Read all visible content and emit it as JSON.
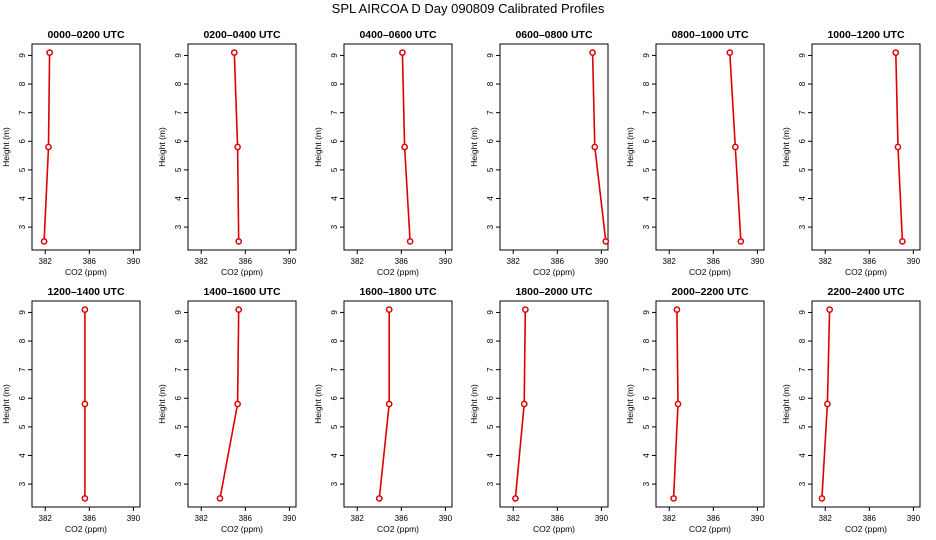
{
  "title": "SPL AIRCOA D  Day 090809  Calibrated Profiles",
  "colors": {
    "line": "#dd0000",
    "marker": "#dd0000",
    "axis": "#000000"
  },
  "chart_data": [
    {
      "type": "line",
      "title": "0000–0200 UTC",
      "xlabel": "CO2 (ppm)",
      "ylabel": "Height (m)",
      "xlim": [
        380.8,
        390.6
      ],
      "ylim": [
        2.2,
        9.4
      ],
      "xticks": [
        382,
        386,
        390
      ],
      "xtick_labels": [
        "382",
        "386",
        "390"
      ],
      "yticks": [
        3,
        4,
        5,
        6,
        7,
        8,
        9
      ],
      "ytick_labels": [
        "3",
        "4",
        "5",
        "6",
        "7",
        "8",
        "9"
      ],
      "x": [
        381.9,
        382.3,
        382.4
      ],
      "y": [
        2.5,
        5.8,
        9.1
      ]
    },
    {
      "type": "line",
      "title": "0200–0400 UTC",
      "xlabel": "CO2 (ppm)",
      "ylabel": "Height (m)",
      "xlim": [
        380.8,
        390.6
      ],
      "ylim": [
        2.2,
        9.4
      ],
      "xticks": [
        382,
        386,
        390
      ],
      "xtick_labels": [
        "382",
        "386",
        "390"
      ],
      "yticks": [
        3,
        4,
        5,
        6,
        7,
        8,
        9
      ],
      "ytick_labels": [
        "3",
        "4",
        "5",
        "6",
        "7",
        "8",
        "9"
      ],
      "x": [
        385.4,
        385.3,
        385.0
      ],
      "y": [
        2.5,
        5.8,
        9.1
      ]
    },
    {
      "type": "line",
      "title": "0400–0600 UTC",
      "xlabel": "CO2 (ppm)",
      "ylabel": "Height (m)",
      "xlim": [
        380.8,
        390.6
      ],
      "ylim": [
        2.2,
        9.4
      ],
      "xticks": [
        382,
        386,
        390
      ],
      "xtick_labels": [
        "382",
        "386",
        "390"
      ],
      "yticks": [
        3,
        4,
        5,
        6,
        7,
        8,
        9
      ],
      "ytick_labels": [
        "3",
        "4",
        "5",
        "6",
        "7",
        "8",
        "9"
      ],
      "x": [
        386.8,
        386.3,
        386.1
      ],
      "y": [
        2.5,
        5.8,
        9.1
      ]
    },
    {
      "type": "line",
      "title": "0600–0800 UTC",
      "xlabel": "CO2 (ppm)",
      "ylabel": "Height (m)",
      "xlim": [
        380.8,
        390.6
      ],
      "ylim": [
        2.2,
        9.4
      ],
      "xticks": [
        382,
        386,
        390
      ],
      "xtick_labels": [
        "382",
        "386",
        "390"
      ],
      "yticks": [
        3,
        4,
        5,
        6,
        7,
        8,
        9
      ],
      "ytick_labels": [
        "3",
        "4",
        "5",
        "6",
        "7",
        "8",
        "9"
      ],
      "x": [
        390.4,
        389.4,
        389.2
      ],
      "y": [
        2.5,
        5.8,
        9.1
      ]
    },
    {
      "type": "line",
      "title": "0800–1000 UTC",
      "xlabel": "CO2 (ppm)",
      "ylabel": "Height (m)",
      "xlim": [
        380.8,
        390.6
      ],
      "ylim": [
        2.2,
        9.4
      ],
      "xticks": [
        382,
        386,
        390
      ],
      "xtick_labels": [
        "382",
        "386",
        "390"
      ],
      "yticks": [
        3,
        4,
        5,
        6,
        7,
        8,
        9
      ],
      "ytick_labels": [
        "3",
        "4",
        "5",
        "6",
        "7",
        "8",
        "9"
      ],
      "x": [
        388.5,
        388.0,
        387.5
      ],
      "y": [
        2.5,
        5.8,
        9.1
      ]
    },
    {
      "type": "line",
      "title": "1000–1200 UTC",
      "xlabel": "CO2 (ppm)",
      "ylabel": "Height (m)",
      "xlim": [
        380.8,
        390.6
      ],
      "ylim": [
        2.2,
        9.4
      ],
      "xticks": [
        382,
        386,
        390
      ],
      "xtick_labels": [
        "382",
        "386",
        "390"
      ],
      "yticks": [
        3,
        4,
        5,
        6,
        7,
        8,
        9
      ],
      "ytick_labels": [
        "3",
        "4",
        "5",
        "6",
        "7",
        "8",
        "9"
      ],
      "x": [
        389.0,
        388.6,
        388.4
      ],
      "y": [
        2.5,
        5.8,
        9.1
      ]
    },
    {
      "type": "line",
      "title": "1200–1400 UTC",
      "xlabel": "CO2 (ppm)",
      "ylabel": "Height (m)",
      "xlim": [
        380.8,
        390.6
      ],
      "ylim": [
        2.2,
        9.4
      ],
      "xticks": [
        382,
        386,
        390
      ],
      "xtick_labels": [
        "382",
        "386",
        "390"
      ],
      "yticks": [
        3,
        4,
        5,
        6,
        7,
        8,
        9
      ],
      "ytick_labels": [
        "3",
        "4",
        "5",
        "6",
        "7",
        "8",
        "9"
      ],
      "x": [
        385.6,
        385.6,
        385.6
      ],
      "y": [
        2.5,
        5.8,
        9.1
      ]
    },
    {
      "type": "line",
      "title": "1400–1600 UTC",
      "xlabel": "CO2 (ppm)",
      "ylabel": "Height (m)",
      "xlim": [
        380.8,
        390.6
      ],
      "ylim": [
        2.2,
        9.4
      ],
      "xticks": [
        382,
        386,
        390
      ],
      "xtick_labels": [
        "382",
        "386",
        "390"
      ],
      "yticks": [
        3,
        4,
        5,
        6,
        7,
        8,
        9
      ],
      "ytick_labels": [
        "3",
        "4",
        "5",
        "6",
        "7",
        "8",
        "9"
      ],
      "x": [
        383.7,
        385.3,
        385.4
      ],
      "y": [
        2.5,
        5.8,
        9.1
      ]
    },
    {
      "type": "line",
      "title": "1600–1800 UTC",
      "xlabel": "CO2 (ppm)",
      "ylabel": "Height (m)",
      "xlim": [
        380.8,
        390.6
      ],
      "ylim": [
        2.2,
        9.4
      ],
      "xticks": [
        382,
        386,
        390
      ],
      "xtick_labels": [
        "382",
        "386",
        "390"
      ],
      "yticks": [
        3,
        4,
        5,
        6,
        7,
        8,
        9
      ],
      "ytick_labels": [
        "3",
        "4",
        "5",
        "6",
        "7",
        "8",
        "9"
      ],
      "x": [
        384.0,
        384.9,
        384.9
      ],
      "y": [
        2.5,
        5.8,
        9.1
      ]
    },
    {
      "type": "line",
      "title": "1800–2000 UTC",
      "xlabel": "CO2 (ppm)",
      "ylabel": "Height (m)",
      "xlim": [
        380.8,
        390.6
      ],
      "ylim": [
        2.2,
        9.4
      ],
      "xticks": [
        382,
        386,
        390
      ],
      "xtick_labels": [
        "382",
        "386",
        "390"
      ],
      "yticks": [
        3,
        4,
        5,
        6,
        7,
        8,
        9
      ],
      "ytick_labels": [
        "3",
        "4",
        "5",
        "6",
        "7",
        "8",
        "9"
      ],
      "x": [
        382.2,
        383.0,
        383.1
      ],
      "y": [
        2.5,
        5.8,
        9.1
      ]
    },
    {
      "type": "line",
      "title": "2000–2200 UTC",
      "xlabel": "CO2 (ppm)",
      "ylabel": "Height (m)",
      "xlim": [
        380.8,
        390.6
      ],
      "ylim": [
        2.2,
        9.4
      ],
      "xticks": [
        382,
        386,
        390
      ],
      "xtick_labels": [
        "382",
        "386",
        "390"
      ],
      "yticks": [
        3,
        4,
        5,
        6,
        7,
        8,
        9
      ],
      "ytick_labels": [
        "3",
        "4",
        "5",
        "6",
        "7",
        "8",
        "9"
      ],
      "x": [
        382.4,
        382.8,
        382.7
      ],
      "y": [
        2.5,
        5.8,
        9.1
      ]
    },
    {
      "type": "line",
      "title": "2200–2400 UTC",
      "xlabel": "CO2 (ppm)",
      "ylabel": "Height (m)",
      "xlim": [
        380.8,
        390.6
      ],
      "ylim": [
        2.2,
        9.4
      ],
      "xticks": [
        382,
        386,
        390
      ],
      "xtick_labels": [
        "382",
        "386",
        "390"
      ],
      "yticks": [
        3,
        4,
        5,
        6,
        7,
        8,
        9
      ],
      "ytick_labels": [
        "3",
        "4",
        "5",
        "6",
        "7",
        "8",
        "9"
      ],
      "x": [
        381.7,
        382.2,
        382.4
      ],
      "y": [
        2.5,
        5.8,
        9.1
      ]
    }
  ]
}
